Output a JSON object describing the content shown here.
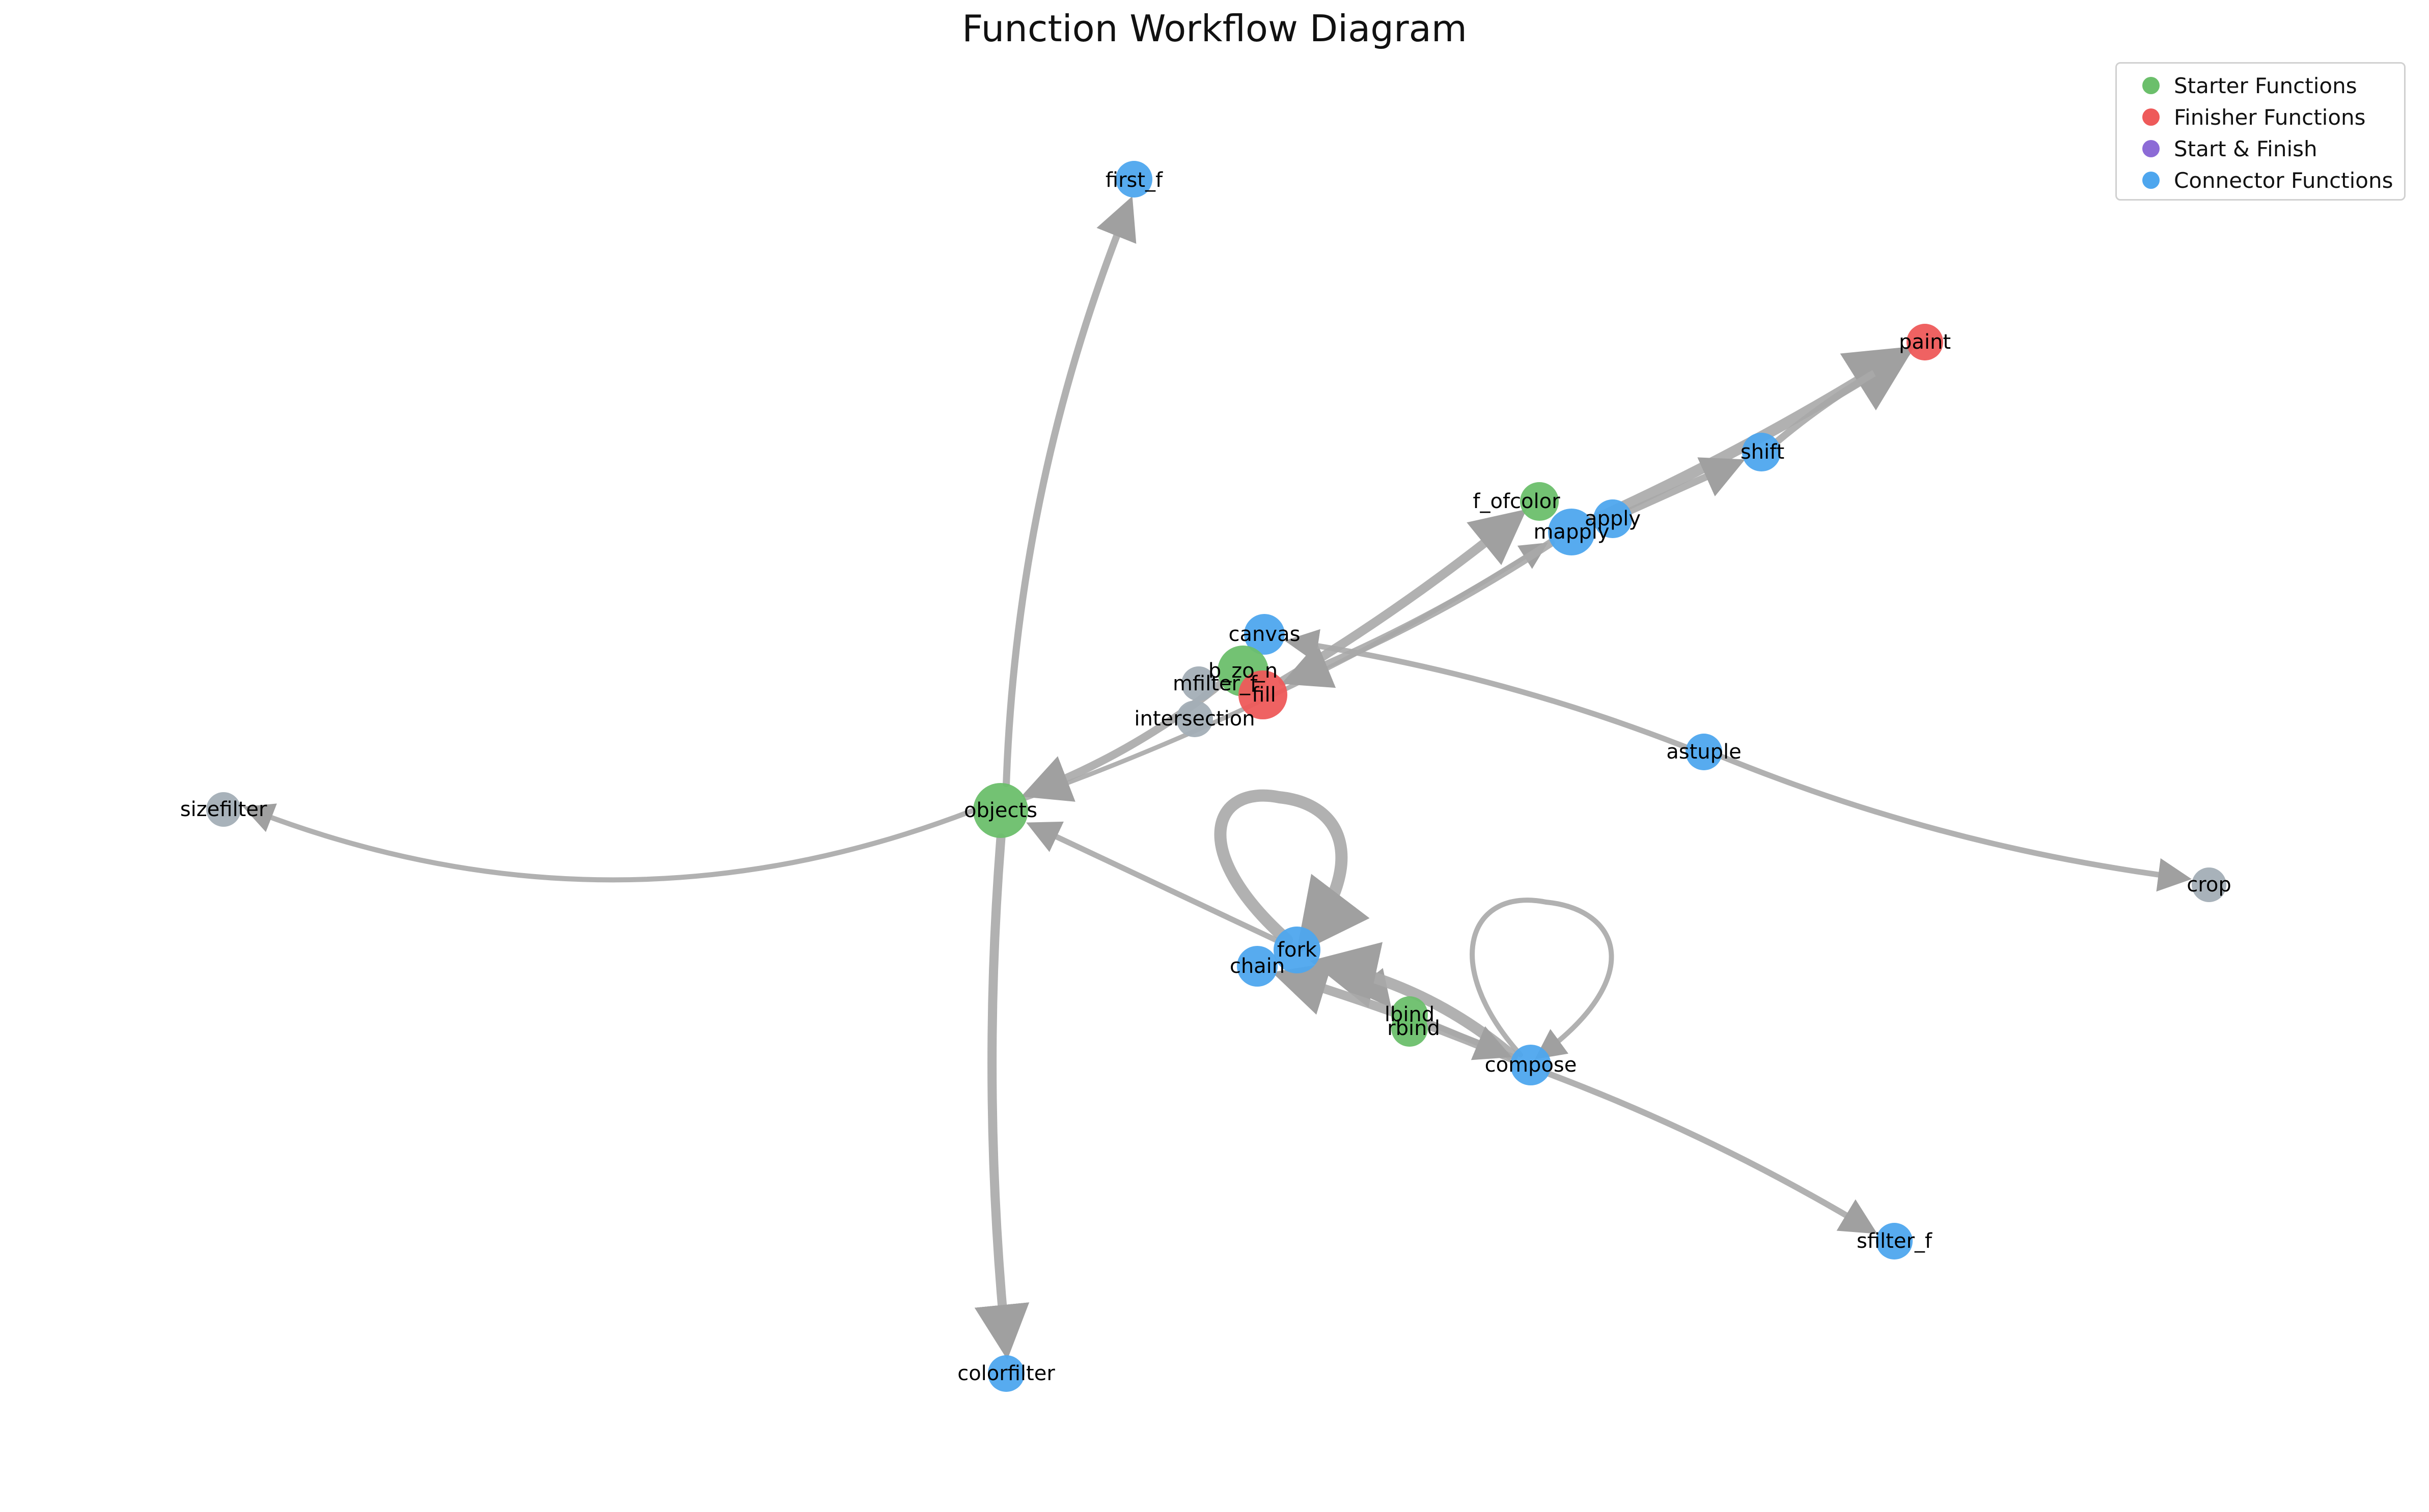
{
  "title": "Function Workflow Diagram",
  "legend": [
    {
      "key": "starter",
      "label": "Starter Functions",
      "color": "#6bbf6b"
    },
    {
      "key": "finisher",
      "label": "Finisher Functions",
      "color": "#ee5a5a"
    },
    {
      "key": "both",
      "label": "Start & Finish",
      "color": "#8c6bd6"
    },
    {
      "key": "connector",
      "label": "Connector Functions",
      "color": "#4ea6ee"
    }
  ],
  "colors": {
    "starter": "#6bbf6b",
    "finisher": "#ee5a5a",
    "both": "#8c6bd6",
    "connector": "#4ea6ee",
    "other": "#a3aeb6",
    "edge": "#a8a8a8"
  },
  "nodes": [
    {
      "id": "first_f",
      "label": "first_f",
      "category": "connector"
    },
    {
      "id": "paint",
      "label": "paint",
      "category": "finisher"
    },
    {
      "id": "shift",
      "label": "shift",
      "category": "connector"
    },
    {
      "id": "f_ofcolor",
      "label": "f_ofcolor",
      "category": "starter"
    },
    {
      "id": "apply",
      "label": "apply",
      "category": "connector"
    },
    {
      "id": "mapply",
      "label": "mapply",
      "category": "connector"
    },
    {
      "id": "canvas",
      "label": "canvas",
      "category": "connector"
    },
    {
      "id": "b_zo_n",
      "label": "b_zo_n",
      "category": "starter"
    },
    {
      "id": "mfilter_f",
      "label": "mfilter_f",
      "category": "other"
    },
    {
      "id": "fill",
      "label": "fill",
      "category": "finisher"
    },
    {
      "id": "intersection",
      "label": "intersection",
      "category": "other"
    },
    {
      "id": "astuple",
      "label": "astuple",
      "category": "connector"
    },
    {
      "id": "sizefilter",
      "label": "sizefilter",
      "category": "other"
    },
    {
      "id": "objects",
      "label": "objects",
      "category": "starter"
    },
    {
      "id": "crop",
      "label": "crop",
      "category": "other"
    },
    {
      "id": "fork",
      "label": "fork",
      "category": "connector"
    },
    {
      "id": "chain",
      "label": "chain",
      "category": "connector"
    },
    {
      "id": "lbind",
      "label": "lbind",
      "category": "starter"
    },
    {
      "id": "rbind",
      "label": "rbind",
      "category": "starter"
    },
    {
      "id": "compose",
      "label": "compose",
      "category": "connector"
    },
    {
      "id": "sfilter_f",
      "label": "sfilter_f",
      "category": "connector"
    },
    {
      "id": "colorfilter",
      "label": "colorfilter",
      "category": "connector"
    }
  ],
  "edges": [
    {
      "from": "objects",
      "to": "first_f"
    },
    {
      "from": "objects",
      "to": "sizefilter"
    },
    {
      "from": "objects",
      "to": "colorfilter"
    },
    {
      "from": "objects",
      "to": "mapply"
    },
    {
      "from": "b_zo_n",
      "to": "objects"
    },
    {
      "from": "fill",
      "to": "f_ofcolor"
    },
    {
      "from": "mapply",
      "to": "fill"
    },
    {
      "from": "mapply",
      "to": "paint"
    },
    {
      "from": "apply",
      "to": "shift"
    },
    {
      "from": "shift",
      "to": "paint"
    },
    {
      "from": "astuple",
      "to": "canvas"
    },
    {
      "from": "astuple",
      "to": "crop"
    },
    {
      "from": "fork",
      "to": "objects"
    },
    {
      "from": "fork",
      "to": "fork"
    },
    {
      "from": "fork",
      "to": "lbind"
    },
    {
      "from": "compose",
      "to": "compose"
    },
    {
      "from": "compose",
      "to": "fork"
    },
    {
      "from": "compose",
      "to": "chain"
    },
    {
      "from": "compose",
      "to": "sfilter_f"
    },
    {
      "from": "lbind",
      "to": "compose"
    }
  ]
}
